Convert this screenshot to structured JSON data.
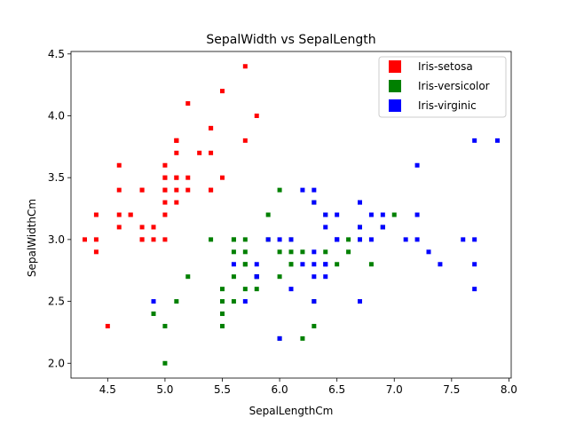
{
  "chart_data": {
    "type": "scatter",
    "title": "SepalWidth vs SepalLength",
    "xlabel": "SepalLengthCm",
    "ylabel": "SepalWidthCm",
    "xlim": [
      4.18,
      8.02
    ],
    "ylim": [
      1.88,
      4.52
    ],
    "xticks": [
      4.5,
      5.0,
      5.5,
      6.0,
      6.5,
      7.0,
      7.5,
      8.0
    ],
    "xtick_labels": [
      "4.5",
      "5.0",
      "5.5",
      "6.0",
      "6.5",
      "7.0",
      "7.5",
      "8.0"
    ],
    "yticks": [
      2.0,
      2.5,
      3.0,
      3.5,
      4.0,
      4.5
    ],
    "ytick_labels": [
      "2.0",
      "2.5",
      "3.0",
      "3.5",
      "4.0",
      "4.5"
    ],
    "grid": false,
    "legend_position": "top-right",
    "marker": "square",
    "series": [
      {
        "name": "Iris-setosa",
        "color": "#ff0000",
        "points": [
          [
            5.1,
            3.5
          ],
          [
            4.9,
            3.0
          ],
          [
            4.7,
            3.2
          ],
          [
            4.6,
            3.1
          ],
          [
            5.0,
            3.6
          ],
          [
            5.4,
            3.9
          ],
          [
            4.6,
            3.4
          ],
          [
            5.0,
            3.4
          ],
          [
            4.4,
            2.9
          ],
          [
            4.9,
            3.1
          ],
          [
            5.4,
            3.7
          ],
          [
            4.8,
            3.4
          ],
          [
            4.8,
            3.0
          ],
          [
            4.3,
            3.0
          ],
          [
            5.8,
            4.0
          ],
          [
            5.7,
            4.4
          ],
          [
            5.4,
            3.9
          ],
          [
            5.1,
            3.5
          ],
          [
            5.7,
            3.8
          ],
          [
            5.1,
            3.8
          ],
          [
            5.4,
            3.4
          ],
          [
            5.1,
            3.7
          ],
          [
            4.6,
            3.6
          ],
          [
            5.1,
            3.3
          ],
          [
            4.8,
            3.4
          ],
          [
            5.0,
            3.0
          ],
          [
            5.0,
            3.4
          ],
          [
            5.2,
            3.5
          ],
          [
            5.2,
            3.4
          ],
          [
            4.7,
            3.2
          ],
          [
            4.8,
            3.1
          ],
          [
            5.4,
            3.4
          ],
          [
            5.2,
            4.1
          ],
          [
            5.5,
            4.2
          ],
          [
            4.9,
            3.1
          ],
          [
            5.0,
            3.2
          ],
          [
            5.5,
            3.5
          ],
          [
            4.9,
            3.1
          ],
          [
            4.4,
            3.0
          ],
          [
            5.1,
            3.4
          ],
          [
            5.0,
            3.5
          ],
          [
            4.5,
            2.3
          ],
          [
            4.4,
            3.2
          ],
          [
            5.0,
            3.5
          ],
          [
            5.1,
            3.8
          ],
          [
            4.8,
            3.0
          ],
          [
            5.1,
            3.8
          ],
          [
            4.6,
            3.2
          ],
          [
            5.3,
            3.7
          ],
          [
            5.0,
            3.3
          ]
        ]
      },
      {
        "name": "Iris-versicolor",
        "color": "#008000",
        "points": [
          [
            7.0,
            3.2
          ],
          [
            6.4,
            3.2
          ],
          [
            6.9,
            3.1
          ],
          [
            5.5,
            2.3
          ],
          [
            6.5,
            2.8
          ],
          [
            5.7,
            2.8
          ],
          [
            6.3,
            3.3
          ],
          [
            4.9,
            2.4
          ],
          [
            6.6,
            2.9
          ],
          [
            5.2,
            2.7
          ],
          [
            5.0,
            2.0
          ],
          [
            5.9,
            3.0
          ],
          [
            6.0,
            2.2
          ],
          [
            6.1,
            2.9
          ],
          [
            5.6,
            2.9
          ],
          [
            6.7,
            3.1
          ],
          [
            5.6,
            3.0
          ],
          [
            5.8,
            2.7
          ],
          [
            6.2,
            2.2
          ],
          [
            5.6,
            2.5
          ],
          [
            5.9,
            3.2
          ],
          [
            6.1,
            2.8
          ],
          [
            6.3,
            2.5
          ],
          [
            6.1,
            2.8
          ],
          [
            6.4,
            2.9
          ],
          [
            6.6,
            3.0
          ],
          [
            6.8,
            2.8
          ],
          [
            6.7,
            3.0
          ],
          [
            6.0,
            2.9
          ],
          [
            5.7,
            2.6
          ],
          [
            5.5,
            2.4
          ],
          [
            5.5,
            2.4
          ],
          [
            5.8,
            2.7
          ],
          [
            6.0,
            2.7
          ],
          [
            5.4,
            3.0
          ],
          [
            6.0,
            3.4
          ],
          [
            6.7,
            3.1
          ],
          [
            6.3,
            2.3
          ],
          [
            5.6,
            3.0
          ],
          [
            5.5,
            2.5
          ],
          [
            5.5,
            2.6
          ],
          [
            6.1,
            3.0
          ],
          [
            5.8,
            2.6
          ],
          [
            5.0,
            2.3
          ],
          [
            5.6,
            2.7
          ],
          [
            5.7,
            3.0
          ],
          [
            5.7,
            2.9
          ],
          [
            6.2,
            2.9
          ],
          [
            5.1,
            2.5
          ],
          [
            5.7,
            2.8
          ]
        ]
      },
      {
        "name": "Iris-virginic",
        "color": "#0000ff",
        "points": [
          [
            6.3,
            3.3
          ],
          [
            5.8,
            2.7
          ],
          [
            7.1,
            3.0
          ],
          [
            6.3,
            2.9
          ],
          [
            6.5,
            3.0
          ],
          [
            7.6,
            3.0
          ],
          [
            4.9,
            2.5
          ],
          [
            7.3,
            2.9
          ],
          [
            6.7,
            2.5
          ],
          [
            7.2,
            3.6
          ],
          [
            6.5,
            3.2
          ],
          [
            6.4,
            2.7
          ],
          [
            6.8,
            3.0
          ],
          [
            5.7,
            2.5
          ],
          [
            5.8,
            2.8
          ],
          [
            6.4,
            3.2
          ],
          [
            6.5,
            3.0
          ],
          [
            7.7,
            3.8
          ],
          [
            7.7,
            2.6
          ],
          [
            6.0,
            2.2
          ],
          [
            6.9,
            3.2
          ],
          [
            5.6,
            2.8
          ],
          [
            7.7,
            2.8
          ],
          [
            6.3,
            2.7
          ],
          [
            6.7,
            3.3
          ],
          [
            7.2,
            3.2
          ],
          [
            6.2,
            2.8
          ],
          [
            6.1,
            3.0
          ],
          [
            6.4,
            2.8
          ],
          [
            7.2,
            3.0
          ],
          [
            7.4,
            2.8
          ],
          [
            7.9,
            3.8
          ],
          [
            6.4,
            2.8
          ],
          [
            6.3,
            2.8
          ],
          [
            6.1,
            2.6
          ],
          [
            7.7,
            3.0
          ],
          [
            6.3,
            3.4
          ],
          [
            6.4,
            3.1
          ],
          [
            6.0,
            3.0
          ],
          [
            6.9,
            3.1
          ],
          [
            6.7,
            3.1
          ],
          [
            6.9,
            3.1
          ],
          [
            5.8,
            2.7
          ],
          [
            6.8,
            3.2
          ],
          [
            6.7,
            3.3
          ],
          [
            6.7,
            3.0
          ],
          [
            6.3,
            2.5
          ],
          [
            6.5,
            3.0
          ],
          [
            6.2,
            3.4
          ],
          [
            5.9,
            3.0
          ]
        ]
      }
    ]
  }
}
